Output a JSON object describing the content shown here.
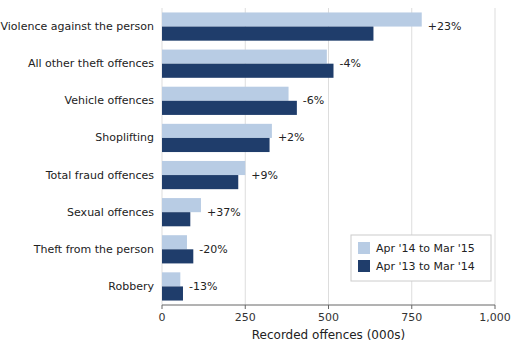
{
  "chart_data": {
    "type": "bar",
    "orientation": "horizontal",
    "categories": [
      "Violence against the person",
      "All other theft offences",
      "Vehicle offences",
      "Shoplifting",
      "Total fraud offences",
      "Sexual offences",
      "Theft from the person",
      "Robbery"
    ],
    "series": [
      {
        "name": "Apr '14 to Mar '15",
        "color": "#b8cce4",
        "values": [
          780,
          495,
          380,
          330,
          250,
          117,
          75,
          55
        ]
      },
      {
        "name": "Apr '13 to Mar '14",
        "color": "#1f3d6b",
        "values": [
          635,
          515,
          405,
          323,
          229,
          85,
          94,
          63
        ]
      }
    ],
    "annotations": [
      "+23%",
      "-4%",
      "-6%",
      "+2%",
      "+9%",
      "+37%",
      "-20%",
      "-13%"
    ],
    "xlabel": "Recorded offences (000s)",
    "xlim": [
      0,
      1000
    ],
    "xticks": [
      0,
      250,
      500,
      750,
      {
        "value": 1000,
        "label": "1,000"
      }
    ],
    "grid": true,
    "legend": "lower right"
  }
}
